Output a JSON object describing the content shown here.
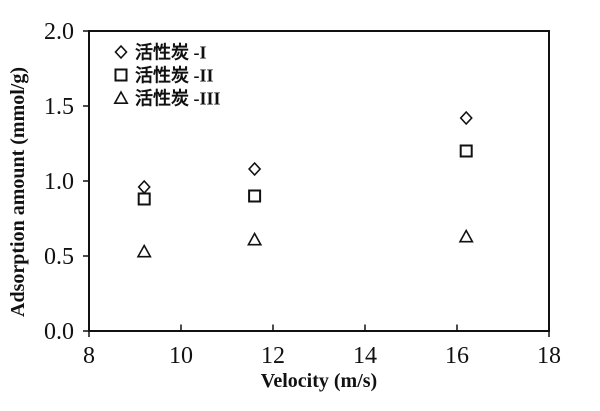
{
  "figure": {
    "background": "#ffffff",
    "ink_color": "#111111"
  },
  "chart_data": {
    "type": "scatter",
    "title": "",
    "xlabel": "Velocity (m/s)",
    "ylabel": "Adsorption amount (mmol/g)",
    "xlim": [
      8,
      18
    ],
    "ylim": [
      0.0,
      2.0
    ],
    "xticks": [
      8,
      10,
      12,
      14,
      16,
      18
    ],
    "xtick_labels": [
      "8",
      "10",
      "12",
      "14",
      "16",
      "18"
    ],
    "ytick_labels": [
      "0.0",
      "0.5",
      "1.0",
      "1.5",
      "2.0"
    ],
    "ytick_values": [
      0.0,
      0.5,
      1.0,
      1.5,
      2.0
    ],
    "grid": false,
    "legend_position": "top-left-inside",
    "series": [
      {
        "name": "活性炭 -I",
        "marker": "diamond",
        "points": [
          [
            9.2,
            0.96
          ],
          [
            11.6,
            1.08
          ],
          [
            16.2,
            1.42
          ]
        ]
      },
      {
        "name": "活性炭 -II",
        "marker": "square",
        "points": [
          [
            9.2,
            0.88
          ],
          [
            11.6,
            0.9
          ],
          [
            16.2,
            1.2
          ]
        ]
      },
      {
        "name": "活性炭 -III",
        "marker": "triangle",
        "points": [
          [
            9.2,
            0.53
          ],
          [
            11.6,
            0.61
          ],
          [
            16.2,
            0.63
          ]
        ]
      }
    ]
  }
}
